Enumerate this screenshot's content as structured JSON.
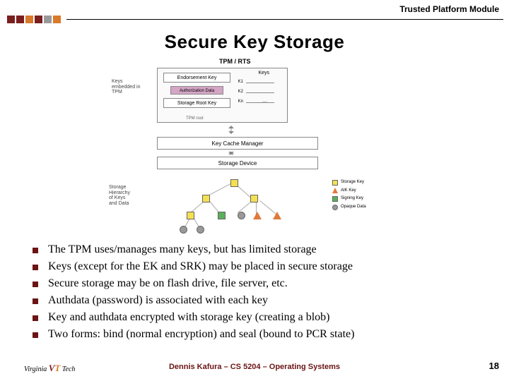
{
  "header": {
    "title": "Trusted Platform Module",
    "accent_colors": [
      "#7a1e1e",
      "#d97a2a",
      "#999999"
    ]
  },
  "slide": {
    "title": "Secure Key Storage"
  },
  "diagram": {
    "tpm_title": "TPM / RTS",
    "endorsement_key": "Endorsement Key",
    "authorization": "Authorization Data",
    "storage_root_key": "Storage Root Key",
    "tpm_root_label": "TPM root",
    "keys_header": "Keys",
    "key_items": [
      "K1",
      "K2",
      "Kn"
    ],
    "left_label_1": "Keys\nembedded in\nTPM",
    "key_cache_manager": "Key Cache Manager",
    "storage_device": "Storage Device",
    "left_label_2": "Storage\nHierarchy\nof Keys\nand Data",
    "legend": {
      "storage_key": "Storage Key",
      "aik_key": "AIK Key",
      "signing_key": "Signing Key",
      "opaque_data": "Opaque Data"
    },
    "colors": {
      "storage_key": "#f5e050",
      "aik_key": "#e07a3a",
      "signing_key": "#5ab05a",
      "opaque_data": "#999999"
    }
  },
  "bullets": [
    "The TPM uses/manages many keys, but has limited storage",
    "Keys (except for the EK and SRK) may be placed in secure storage",
    "Secure storage may be on flash drive, file server, etc.",
    "Authdata (password) is associated with each key",
    "Key and authdata encrypted with storage key (creating a blob)",
    "Two forms: bind (normal encryption) and seal (bound to PCR state)"
  ],
  "footer": {
    "logo_text_1": "Virginia",
    "logo_text_2": "Tech",
    "center": "Dennis Kafura – CS 5204 – Operating Systems",
    "page": "18"
  }
}
